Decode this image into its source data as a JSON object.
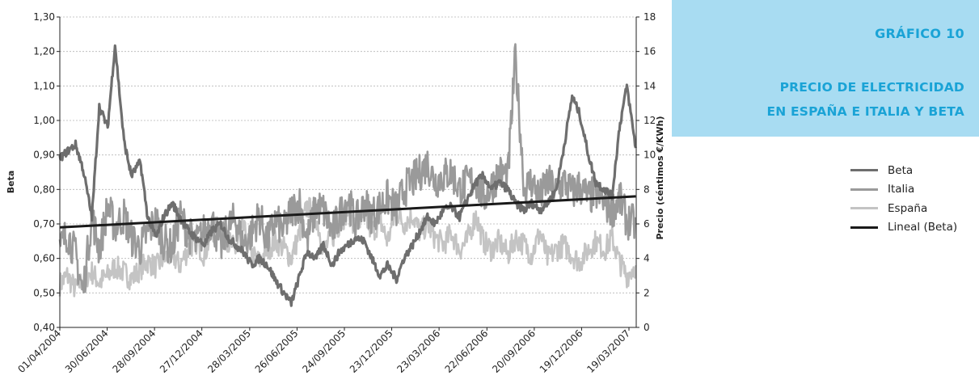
{
  "header": {
    "title": "GRÁFICO 10",
    "subtitle_line1": "PRECIO DE ELECTRICIDAD",
    "subtitle_line2": "EN ESPAÑA E ITALIA Y BETA"
  },
  "legend": [
    {
      "label": "Beta",
      "color": "#6e6e6e"
    },
    {
      "label": "Italia",
      "color": "#9a9a9a"
    },
    {
      "label": "España",
      "color": "#c4c4c4"
    },
    {
      "label": "Lineal (Beta)",
      "color": "#1a1a1a"
    }
  ],
  "chart_data": {
    "type": "line",
    "ylabel": "Beta",
    "y2label": "Precio (céntimos €/KWh)",
    "ylim": [
      0.4,
      1.3
    ],
    "y2lim": [
      0,
      18
    ],
    "yticks": [
      "0,40",
      "0,50",
      "0,60",
      "0,70",
      "0,80",
      "0,90",
      "1,00",
      "1,10",
      "1,20",
      "1,30"
    ],
    "y2ticks": [
      "0",
      "2",
      "4",
      "6",
      "8",
      "10",
      "12",
      "14",
      "16",
      "18"
    ],
    "xticks": [
      "01/04/2004",
      "30/06/2004",
      "28/09/2004",
      "27/12/2004",
      "28/03/2005",
      "26/06/2005",
      "24/09/2005",
      "23/12/2005",
      "23/03/2006",
      "22/06/2006",
      "20/09/2006",
      "19/12/2006",
      "19/03/2007"
    ],
    "grid": true,
    "series": [
      {
        "name": "Beta",
        "axis": "left",
        "color": "#6e6e6e",
        "x": [
          "01/04/2004",
          "15/04/2004",
          "01/05/2004",
          "15/05/2004",
          "01/06/2004",
          "15/06/2004",
          "01/07/2004",
          "15/07/2004",
          "01/08/2004",
          "15/08/2004",
          "01/09/2004",
          "15/09/2004",
          "01/10/2004",
          "15/10/2004",
          "01/11/2004",
          "15/11/2004",
          "01/12/2004",
          "15/12/2004",
          "01/01/2005",
          "15/01/2005",
          "01/02/2005",
          "15/02/2005",
          "01/03/2005",
          "15/03/2005",
          "01/04/2005",
          "15/04/2005",
          "01/05/2005",
          "15/05/2005",
          "01/06/2005",
          "15/06/2005",
          "01/07/2005",
          "15/07/2005",
          "01/08/2005",
          "15/08/2005",
          "01/09/2005",
          "15/09/2005",
          "01/10/2005",
          "15/10/2005",
          "01/11/2005",
          "15/11/2005",
          "01/12/2005",
          "15/12/2005",
          "01/01/2006",
          "15/01/2006",
          "01/02/2006",
          "15/02/2006",
          "01/03/2006",
          "15/03/2006",
          "01/04/2006",
          "15/04/2006",
          "01/05/2006",
          "15/05/2006",
          "01/06/2006",
          "15/06/2006",
          "01/07/2006",
          "15/07/2006",
          "01/08/2006",
          "15/08/2006",
          "01/09/2006",
          "15/09/2006",
          "01/10/2006",
          "15/10/2006",
          "01/11/2006",
          "15/11/2006",
          "01/12/2006",
          "15/12/2006",
          "01/01/2007",
          "15/01/2007",
          "01/02/2007",
          "15/02/2007",
          "01/03/2007",
          "15/03/2007",
          "01/04/2007"
        ],
        "values": [
          0.89,
          0.91,
          0.93,
          0.86,
          0.72,
          1.04,
          0.98,
          1.22,
          0.94,
          0.84,
          0.88,
          0.72,
          0.66,
          0.72,
          0.76,
          0.72,
          0.68,
          0.66,
          0.64,
          0.68,
          0.7,
          0.66,
          0.64,
          0.62,
          0.58,
          0.6,
          0.58,
          0.54,
          0.5,
          0.47,
          0.55,
          0.62,
          0.6,
          0.64,
          0.58,
          0.62,
          0.64,
          0.66,
          0.65,
          0.6,
          0.55,
          0.58,
          0.54,
          0.6,
          0.64,
          0.68,
          0.72,
          0.7,
          0.74,
          0.75,
          0.72,
          0.77,
          0.82,
          0.84,
          0.8,
          0.82,
          0.8,
          0.76,
          0.74,
          0.76,
          0.74,
          0.76,
          0.8,
          0.92,
          1.07,
          1.02,
          0.9,
          0.82,
          0.8,
          0.78,
          0.98,
          1.1,
          0.92
        ]
      },
      {
        "name": "Italia",
        "axis": "right",
        "color": "#9a9a9a",
        "x": [
          "01/04/2004",
          "15/04/2004",
          "01/05/2004",
          "15/05/2004",
          "01/06/2004",
          "15/06/2004",
          "01/07/2004",
          "15/07/2004",
          "01/08/2004",
          "15/08/2004",
          "01/09/2004",
          "15/09/2004",
          "01/10/2004",
          "15/10/2004",
          "01/11/2004",
          "15/11/2004",
          "01/12/2004",
          "15/12/2004",
          "01/01/2005",
          "15/01/2005",
          "01/02/2005",
          "15/02/2005",
          "01/03/2005",
          "15/03/2005",
          "01/04/2005",
          "15/04/2005",
          "01/05/2005",
          "15/05/2005",
          "01/06/2005",
          "15/06/2005",
          "01/07/2005",
          "15/07/2005",
          "01/08/2005",
          "15/08/2005",
          "01/09/2005",
          "15/09/2005",
          "01/10/2005",
          "15/10/2005",
          "01/11/2005",
          "15/11/2005",
          "01/12/2005",
          "15/12/2005",
          "01/01/2006",
          "15/01/2006",
          "01/02/2006",
          "15/02/2006",
          "01/03/2006",
          "15/03/2006",
          "01/04/2006",
          "15/04/2006",
          "01/05/2006",
          "15/05/2006",
          "01/06/2006",
          "15/06/2006",
          "01/07/2006",
          "15/07/2006",
          "01/08/2006",
          "15/08/2006",
          "01/09/2006",
          "15/09/2006",
          "01/10/2006",
          "15/10/2006",
          "01/11/2006",
          "15/11/2006",
          "01/12/2006",
          "15/12/2006",
          "01/01/2007",
          "15/01/2007",
          "01/02/2007",
          "15/02/2007",
          "01/03/2007",
          "15/03/2007",
          "01/04/2007"
        ],
        "values": [
          4.5,
          5.5,
          4.2,
          2.0,
          6.5,
          4.5,
          7.0,
          5.8,
          6.5,
          5.2,
          4.6,
          5.5,
          6.2,
          5.0,
          4.6,
          6.5,
          5.5,
          4.8,
          5.6,
          6.2,
          4.6,
          5.8,
          6.3,
          4.8,
          5.5,
          6.5,
          5.0,
          6.2,
          5.6,
          6.8,
          7.2,
          5.0,
          7.0,
          6.8,
          5.5,
          6.5,
          7.5,
          6.0,
          7.2,
          6.5,
          7.0,
          7.5,
          6.8,
          8.0,
          8.5,
          9.0,
          9.5,
          8.5,
          8.8,
          9.0,
          8.0,
          8.4,
          8.5,
          7.5,
          8.2,
          9.0,
          8.8,
          15.7,
          8.0,
          8.5,
          7.5,
          8.5,
          7.8,
          8.5,
          7.8,
          8.2,
          7.5,
          7.8,
          7.2,
          6.8,
          7.5,
          6.2,
          6.0
        ]
      },
      {
        "name": "España",
        "axis": "right",
        "color": "#c4c4c4",
        "x": [
          "01/04/2004",
          "15/04/2004",
          "01/05/2004",
          "15/05/2004",
          "01/06/2004",
          "15/06/2004",
          "01/07/2004",
          "15/07/2004",
          "01/08/2004",
          "15/08/2004",
          "01/09/2004",
          "15/09/2004",
          "01/10/2004",
          "15/10/2004",
          "01/11/2004",
          "15/11/2004",
          "01/12/2004",
          "15/12/2004",
          "01/01/2005",
          "15/01/2005",
          "01/02/2005",
          "15/02/2005",
          "01/03/2005",
          "15/03/2005",
          "01/04/2005",
          "15/04/2005",
          "01/05/2005",
          "15/05/2005",
          "01/06/2005",
          "15/06/2005",
          "01/07/2005",
          "15/07/2005",
          "01/08/2005",
          "15/08/2005",
          "01/09/2005",
          "15/09/2005",
          "01/10/2005",
          "15/10/2005",
          "01/11/2005",
          "15/11/2005",
          "01/12/2005",
          "15/12/2005",
          "01/01/2006",
          "15/01/2006",
          "01/02/2006",
          "15/02/2006",
          "01/03/2006",
          "15/03/2006",
          "01/04/2006",
          "15/04/2006",
          "01/05/2006",
          "15/05/2006",
          "01/06/2006",
          "15/06/2006",
          "01/07/2006",
          "15/07/2006",
          "01/08/2006",
          "15/08/2006",
          "01/09/2006",
          "15/09/2006",
          "01/10/2006",
          "15/10/2006",
          "01/11/2006",
          "15/11/2006",
          "01/12/2006",
          "15/12/2006",
          "01/01/2007",
          "15/01/2007",
          "01/02/2007",
          "15/02/2007",
          "01/03/2007",
          "15/03/2007",
          "01/04/2007"
        ],
        "values": [
          2.5,
          3.0,
          2.2,
          2.8,
          3.2,
          2.6,
          3.0,
          3.5,
          3.2,
          2.8,
          3.4,
          3.8,
          3.5,
          4.0,
          4.2,
          3.6,
          4.5,
          5.0,
          4.2,
          5.5,
          6.0,
          5.0,
          4.5,
          5.8,
          4.2,
          3.8,
          4.5,
          5.0,
          4.6,
          4.0,
          5.5,
          7.0,
          6.5,
          4.5,
          5.2,
          6.0,
          6.8,
          5.8,
          6.5,
          5.5,
          6.2,
          5.0,
          6.8,
          6.0,
          6.5,
          5.5,
          6.0,
          5.2,
          4.8,
          5.5,
          4.5,
          5.0,
          6.5,
          5.0,
          4.5,
          5.0,
          4.2,
          5.2,
          4.8,
          4.2,
          5.5,
          4.0,
          4.5,
          4.8,
          4.2,
          3.8,
          4.5,
          5.0,
          4.5,
          5.2,
          3.8,
          3.0,
          3.6
        ]
      },
      {
        "name": "Lineal (Beta)",
        "axis": "left",
        "color": "#1a1a1a",
        "x": [
          "01/04/2004",
          "01/04/2007"
        ],
        "values": [
          0.69,
          0.78
        ]
      }
    ]
  }
}
